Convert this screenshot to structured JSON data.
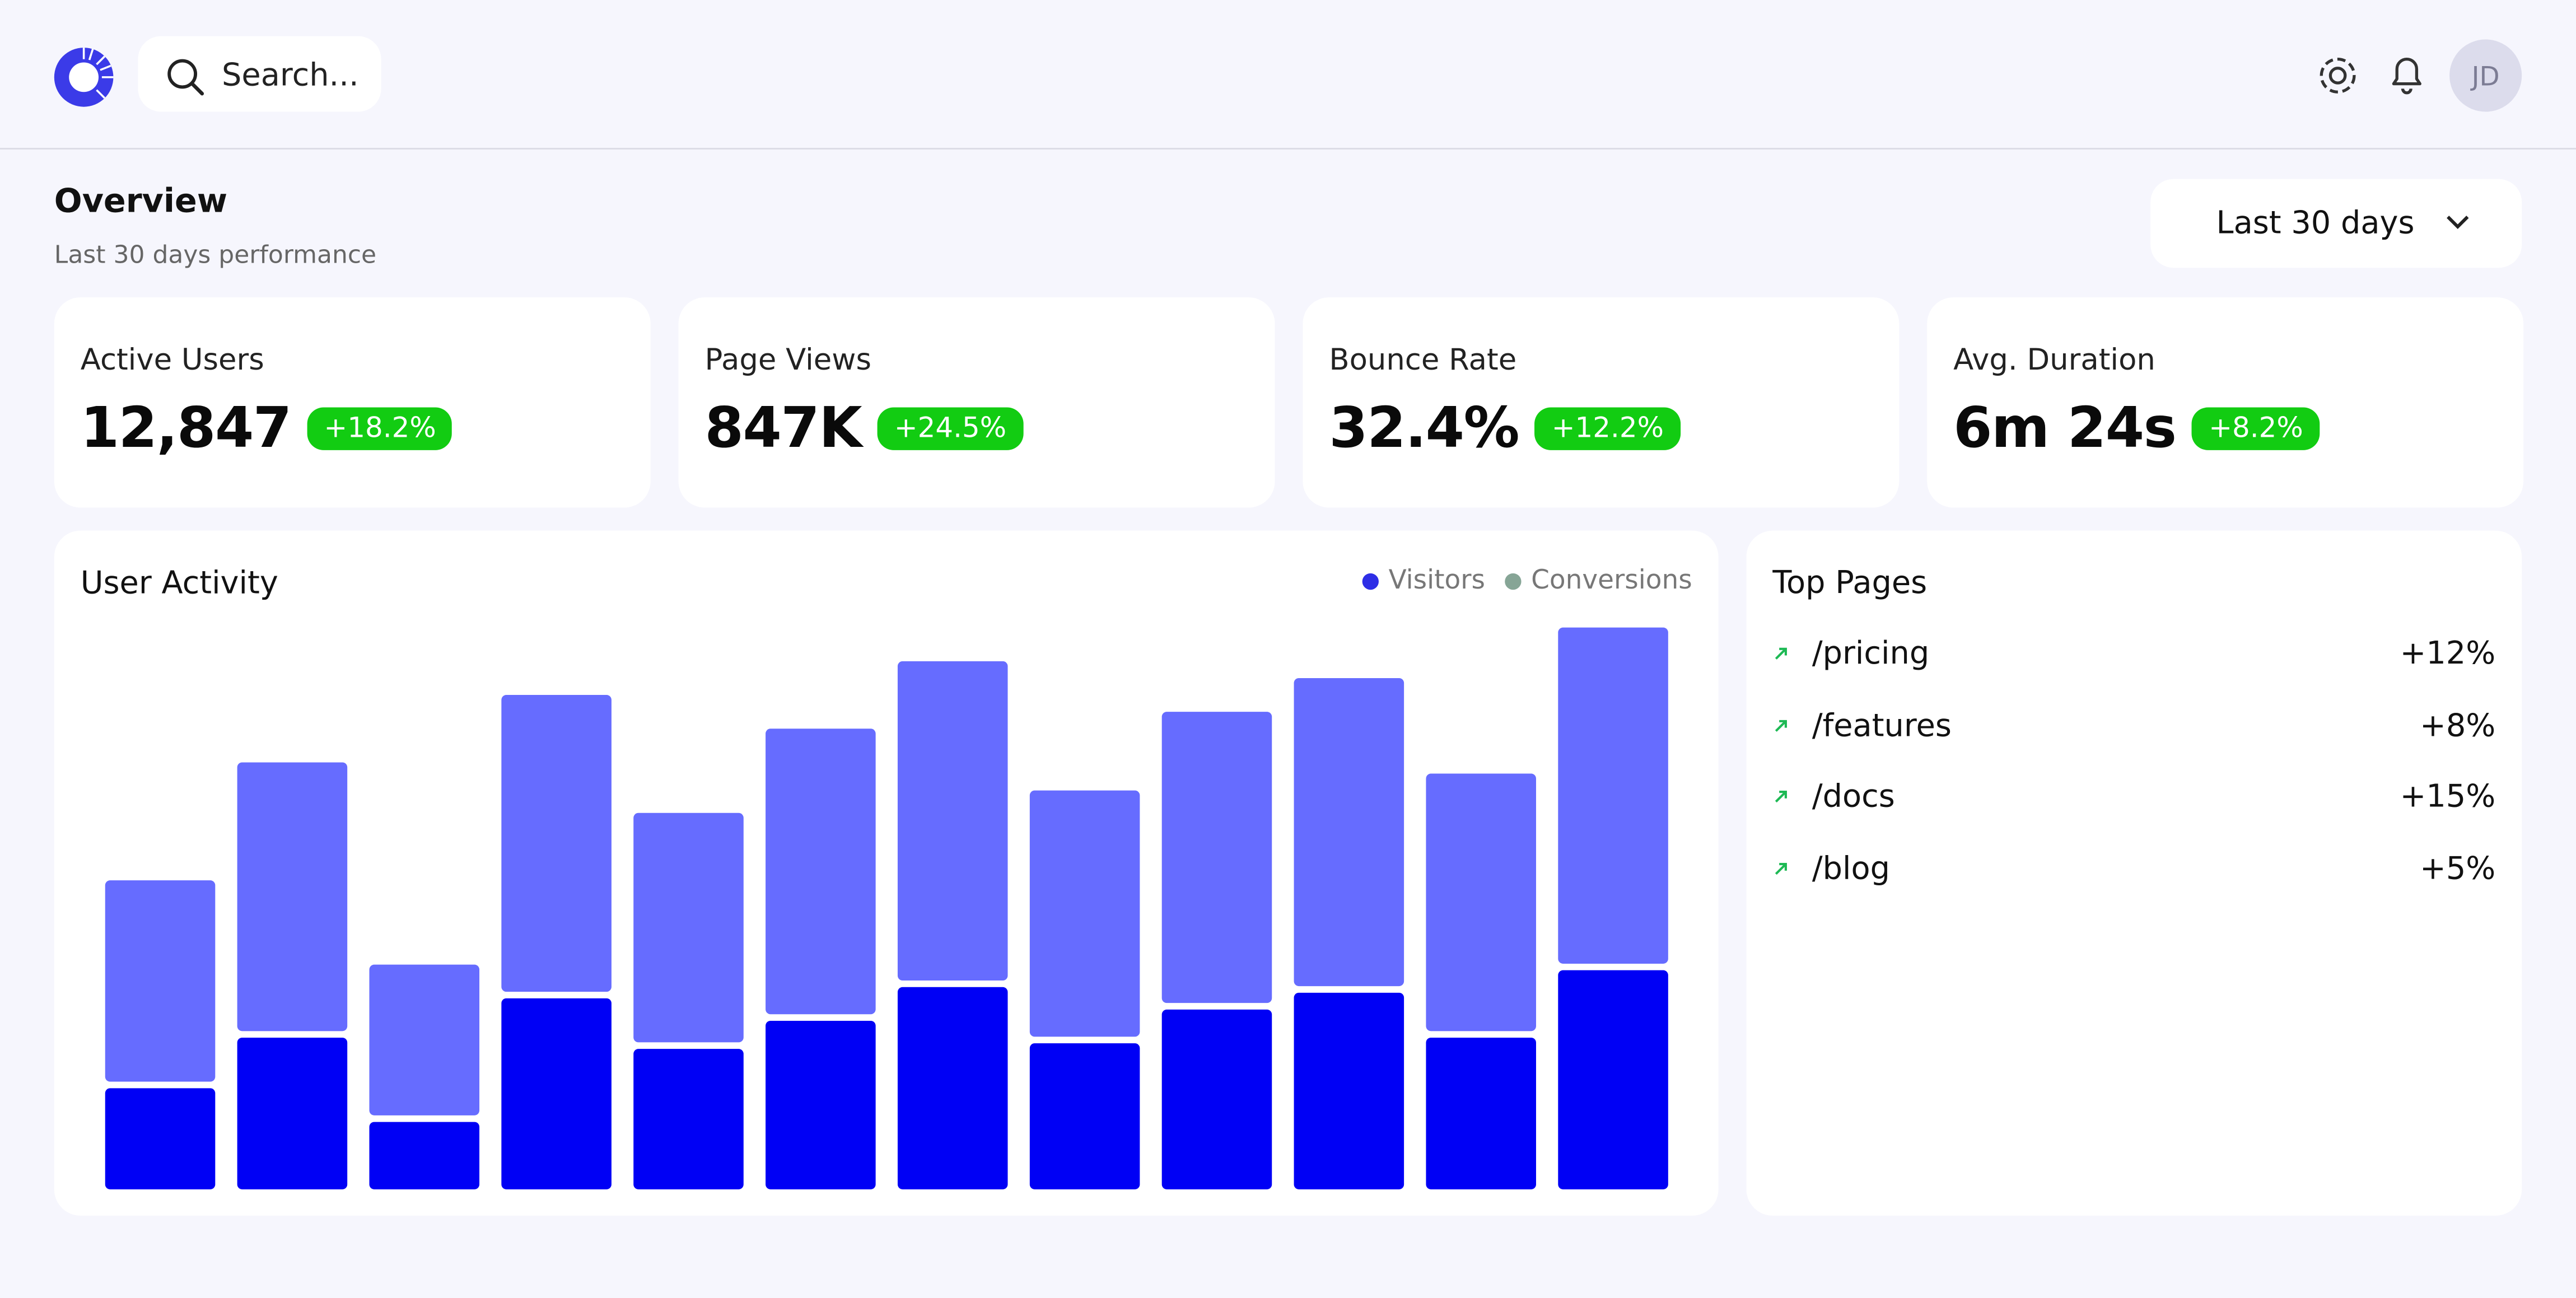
{
  "header": {
    "search_placeholder": "Search...",
    "avatar": "JD"
  },
  "overview": {
    "title": "Overview",
    "subtitle": "Last 30 days performance",
    "range": "Last 30 days"
  },
  "kpis": [
    {
      "label": "Active Users",
      "value": "12,847",
      "change": "+18.2%"
    },
    {
      "label": "Page Views",
      "value": "847K",
      "change": "+24.5%"
    },
    {
      "label": "Bounce Rate",
      "value": "32.4%",
      "change": "+12.2%"
    },
    {
      "label": "Avg. Duration",
      "value": "6m 24s",
      "change": "+8.2%"
    }
  ],
  "chart_data": {
    "type": "stacked-bar",
    "title": "User Activity",
    "ylim": [
      0,
      100
    ],
    "series": [
      {
        "name": "Visitors",
        "color": "#0000f5",
        "legend_color": "#2e2ee6",
        "values": [
          18,
          27,
          12,
          34,
          25,
          30,
          36,
          26,
          32,
          35,
          27,
          39
        ]
      },
      {
        "name": "Conversions",
        "color": "#666cff",
        "legend_color": "#86a596",
        "values": [
          37,
          49,
          28,
          54,
          42,
          52,
          58,
          45,
          53,
          56,
          47,
          61
        ]
      }
    ]
  },
  "top_pages": {
    "title": "Top Pages",
    "items": [
      {
        "path": "/pricing",
        "change": "+12%"
      },
      {
        "path": "/features",
        "change": "+8%"
      },
      {
        "path": "/docs",
        "change": "+15%"
      },
      {
        "path": "/blog",
        "change": "+5%"
      }
    ]
  }
}
